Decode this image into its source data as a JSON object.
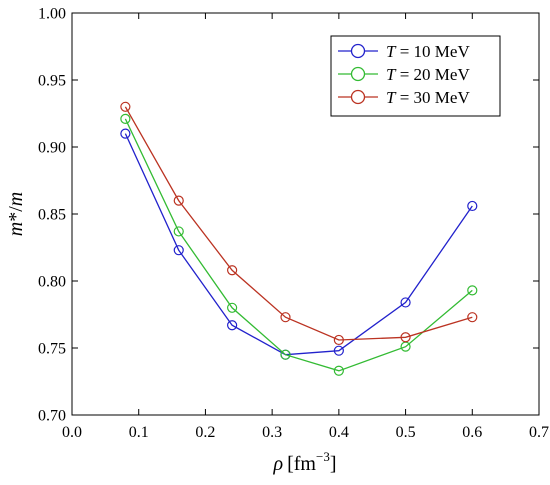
{
  "chart_data": {
    "type": "line",
    "xlabel": {
      "symbol": "ρ",
      "unit_base": "[fm",
      "unit_exp": "−3",
      "unit_close": "]"
    },
    "ylabel": {
      "num": "m",
      "star": "*",
      "slash": "/",
      "den": "m"
    },
    "xlim": [
      0.0,
      0.7
    ],
    "ylim": [
      0.7,
      1.0
    ],
    "x_ticks": [
      "0.0",
      "0.1",
      "0.2",
      "0.3",
      "0.4",
      "0.5",
      "0.6",
      "0.7"
    ],
    "y_ticks": [
      "0.70",
      "0.75",
      "0.80",
      "0.85",
      "0.90",
      "0.95",
      "1.00"
    ],
    "grid": false,
    "legend_position": "top-right",
    "marker": "open-circle",
    "series": [
      {
        "name": "T = 10 MeV",
        "legend_var": "T",
        "legend_rest": " = 10 MeV",
        "color": "#2222cc",
        "x": [
          0.08,
          0.16,
          0.24,
          0.32,
          0.4,
          0.5,
          0.6
        ],
        "y": [
          0.91,
          0.823,
          0.767,
          0.745,
          0.748,
          0.784,
          0.856
        ]
      },
      {
        "name": "T = 20 MeV",
        "legend_var": "T",
        "legend_rest": " = 20 MeV",
        "color": "#33bb33",
        "x": [
          0.08,
          0.16,
          0.24,
          0.32,
          0.4,
          0.5,
          0.6
        ],
        "y": [
          0.921,
          0.837,
          0.78,
          0.745,
          0.733,
          0.751,
          0.793
        ]
      },
      {
        "name": "T = 30 MeV",
        "legend_var": "T",
        "legend_rest": " = 30 MeV",
        "color": "#bb3322",
        "x": [
          0.08,
          0.16,
          0.24,
          0.32,
          0.4,
          0.5,
          0.6
        ],
        "y": [
          0.93,
          0.86,
          0.808,
          0.773,
          0.756,
          0.758,
          0.773
        ]
      }
    ]
  }
}
